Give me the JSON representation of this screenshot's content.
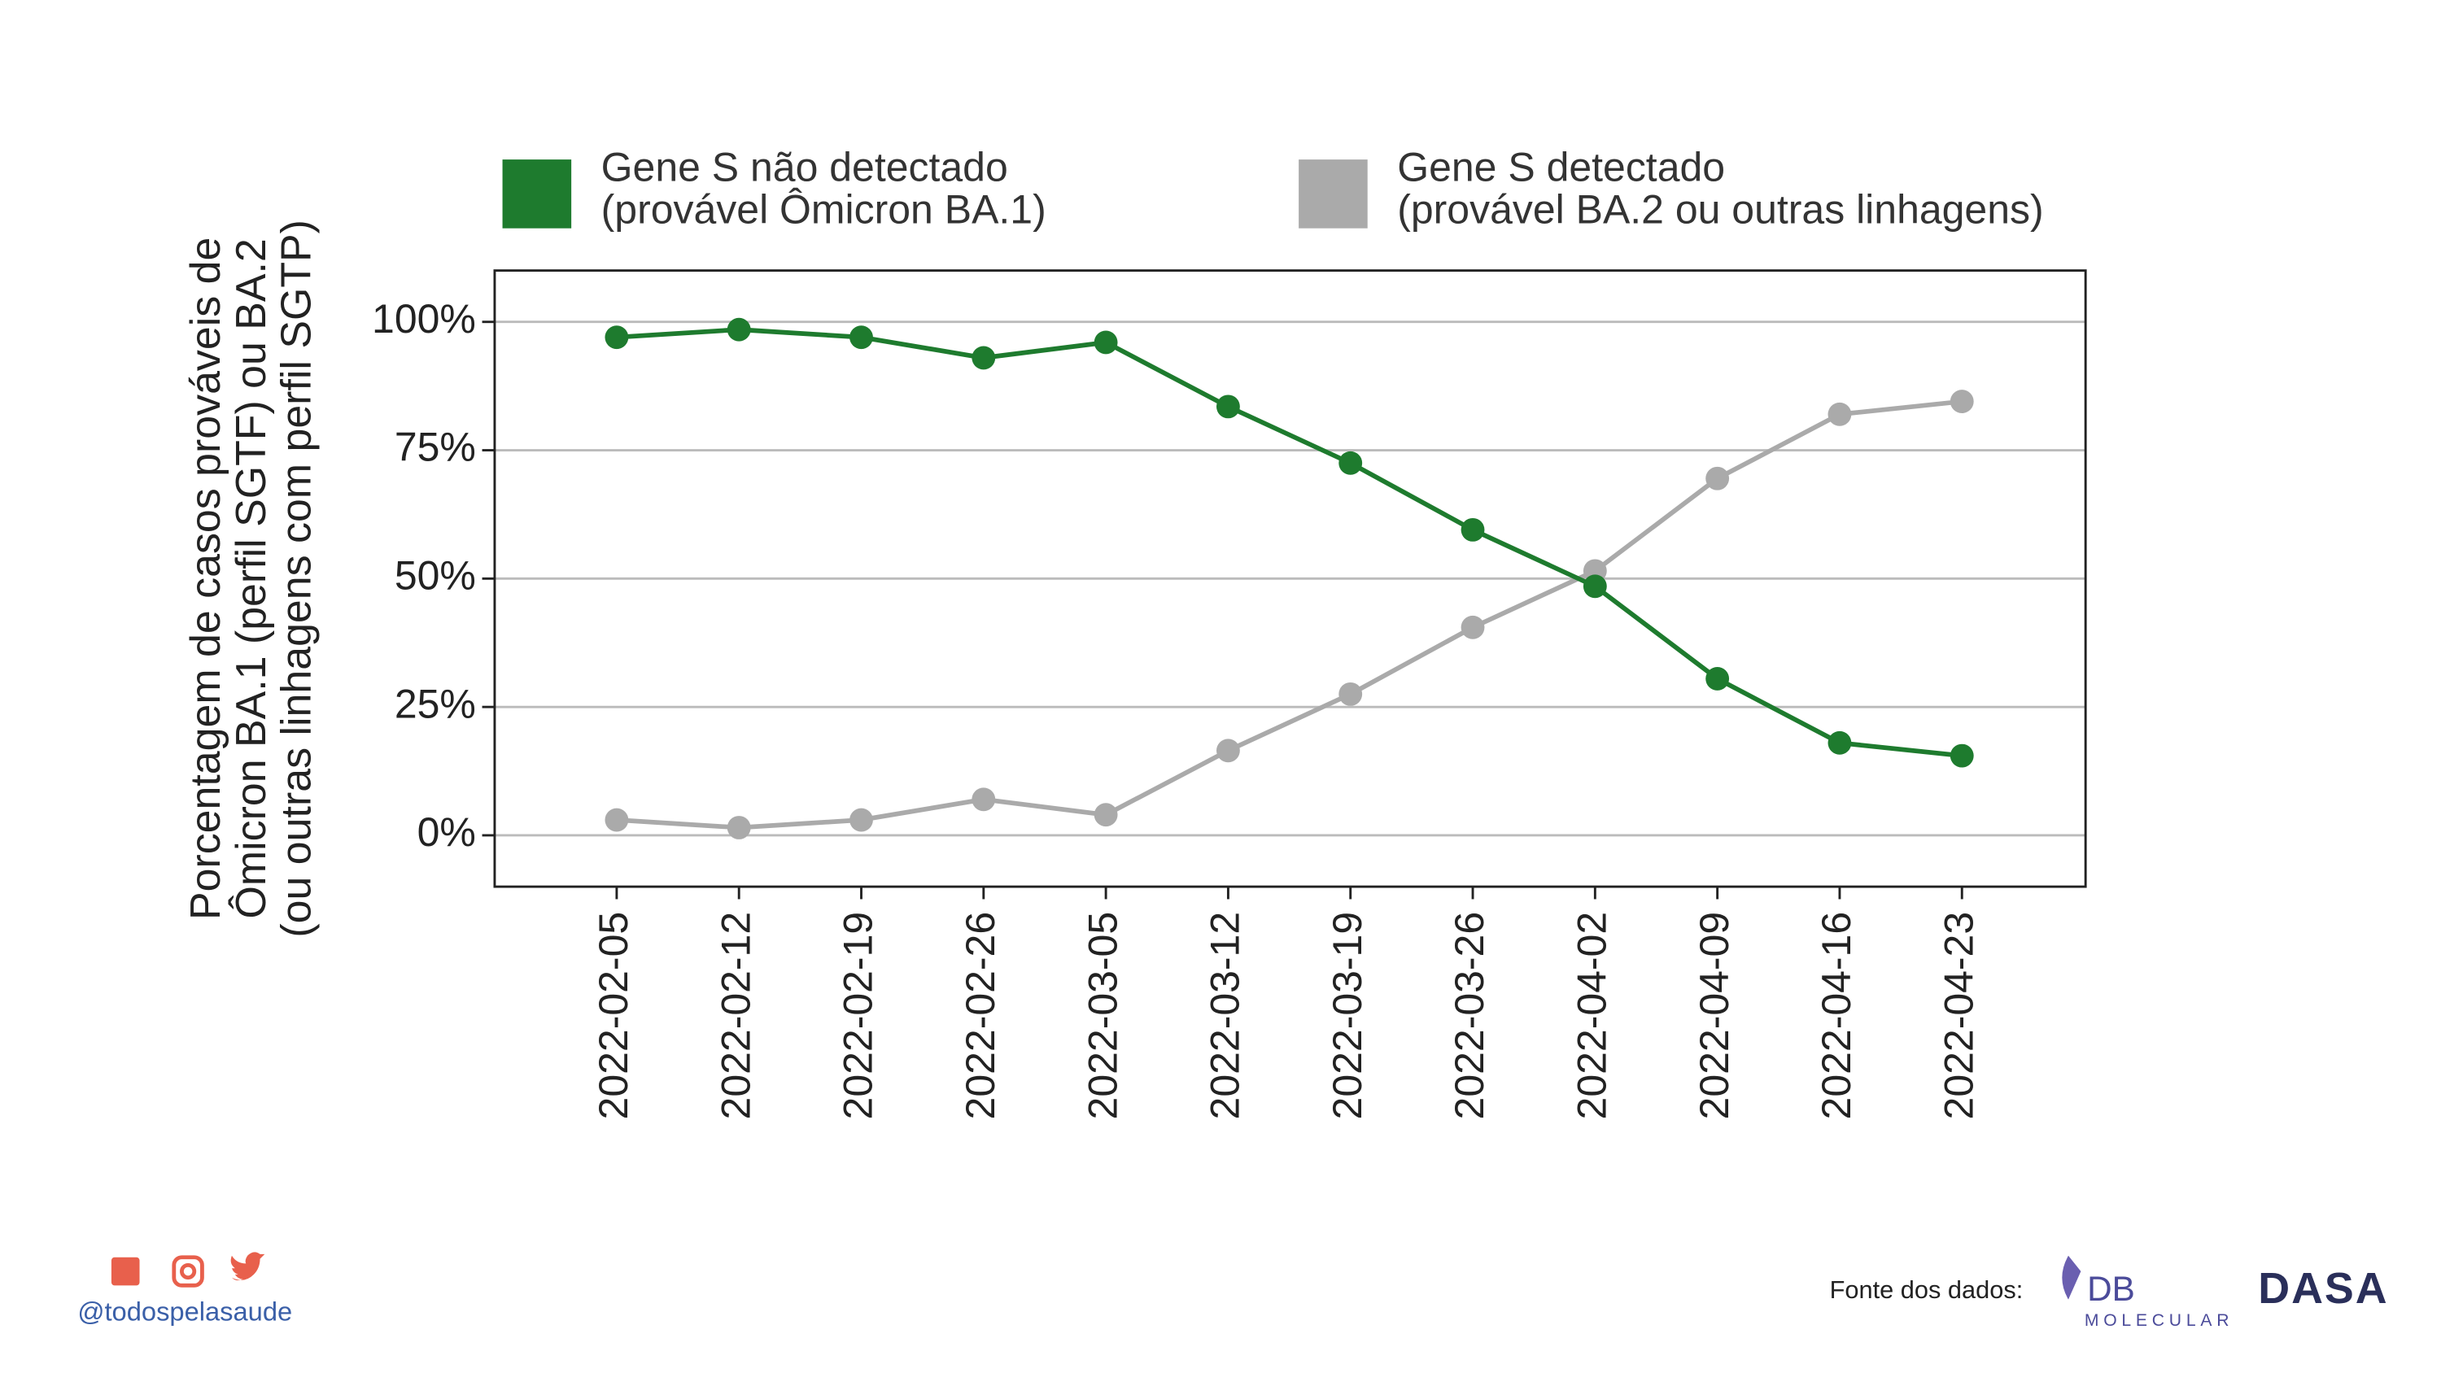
{
  "chart_data": {
    "type": "line",
    "ylabel": "Porcentagem de casos prováveis de\nÔmicron BA.1 (perfil SGTF) ou BA.2\n(ou outras linhagens com perfil SGTP)",
    "categories": [
      "2022-02-05",
      "2022-02-12",
      "2022-02-19",
      "2022-02-26",
      "2022-03-05",
      "2022-03-12",
      "2022-03-19",
      "2022-03-26",
      "2022-04-02",
      "2022-04-09",
      "2022-04-16",
      "2022-04-23"
    ],
    "series": [
      {
        "name": "Gene S não detectado\n(provável Ômicron BA.1)",
        "color": "#1e7b2e",
        "values": [
          97,
          98.5,
          97,
          93,
          96,
          83.5,
          72.5,
          59.5,
          48.5,
          30.5,
          18,
          15.5
        ]
      },
      {
        "name": "Gene S detectado\n(provável BA.2 ou outras linhagens)",
        "color": "#aaaaaa",
        "values": [
          3,
          1.5,
          3,
          7,
          4,
          16.5,
          27.5,
          40.5,
          51.5,
          69.5,
          82,
          84.5
        ]
      }
    ],
    "ylim": [
      -10,
      110
    ],
    "yticks": [
      {
        "value": 0,
        "label": "0%"
      },
      {
        "value": 25,
        "label": "25%"
      },
      {
        "value": 50,
        "label": "50%"
      },
      {
        "value": 75,
        "label": "75%"
      },
      {
        "value": 100,
        "label": "100%"
      }
    ],
    "grid": true,
    "legend": "top"
  },
  "footer": {
    "handle": "@todospelasaude",
    "source": "Fonte dos dados:",
    "logo1": "DB",
    "logo1_sub": "MOLECULAR",
    "logo2": "DASA"
  }
}
